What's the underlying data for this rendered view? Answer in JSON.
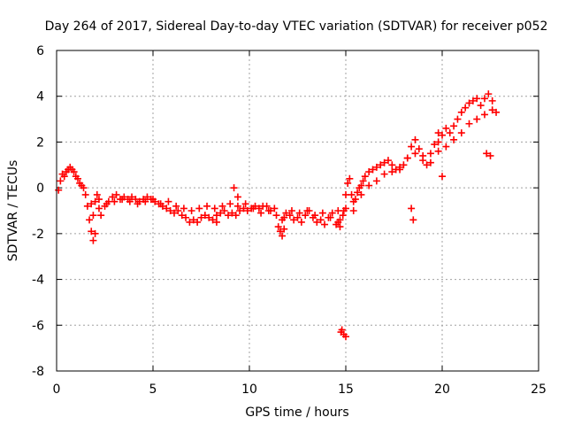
{
  "chart_data": {
    "type": "scatter",
    "title": "Day 264 of 2017, Sidereal Day-to-day VTEC variation (SDTVAR) for receiver p052",
    "xlabel": "GPS time / hours",
    "ylabel": "SDTVAR / TECUs",
    "xlim": [
      0,
      25
    ],
    "ylim": [
      -8,
      6
    ],
    "xticks": [
      0,
      5,
      10,
      15,
      20,
      25
    ],
    "yticks": [
      -8,
      -6,
      -4,
      -2,
      0,
      2,
      4,
      6
    ],
    "grid": true,
    "marker": "+",
    "series": [
      {
        "name": "SDTVAR",
        "color": "#ff0000",
        "x": [
          0.1,
          0.2,
          0.3,
          0.4,
          0.5,
          0.6,
          0.7,
          0.8,
          0.9,
          1.0,
          1.1,
          1.2,
          1.3,
          1.4,
          1.5,
          1.6,
          1.7,
          1.8,
          1.9,
          2.0,
          2.1,
          2.2,
          2.3,
          2.5,
          2.7,
          2.9,
          3.1,
          3.3,
          3.5,
          3.7,
          3.9,
          4.1,
          4.3,
          4.5,
          4.7,
          4.9,
          5.1,
          5.3,
          5.5,
          5.7,
          5.9,
          6.1,
          6.3,
          6.5,
          6.7,
          6.9,
          7.1,
          7.3,
          7.5,
          7.7,
          7.9,
          8.1,
          8.3,
          8.5,
          8.7,
          8.9,
          9.1,
          9.3,
          9.5,
          9.7,
          9.9,
          10.1,
          10.3,
          10.5,
          10.7,
          10.9,
          11.1,
          11.3,
          11.5,
          11.7,
          11.9,
          12.1,
          12.3,
          12.5,
          12.7,
          12.9,
          13.1,
          13.3,
          13.5,
          13.7,
          13.9,
          14.1,
          14.3,
          14.5,
          14.7,
          14.85,
          14.9,
          15.0,
          15.1,
          15.2,
          15.3,
          15.4,
          15.5,
          15.6,
          15.7,
          15.8,
          15.9,
          16.0,
          16.2,
          16.4,
          16.6,
          16.8,
          17.0,
          17.2,
          17.4,
          17.6,
          17.8,
          18.0,
          18.2,
          18.4,
          18.6,
          18.8,
          19.0,
          19.2,
          19.4,
          19.6,
          19.8,
          20.0,
          20.2,
          20.4,
          20.6,
          20.8,
          21.0,
          21.2,
          21.4,
          21.6,
          21.8,
          22.0,
          22.2,
          22.4,
          22.6,
          22.8,
          1.8,
          2.2,
          2.6,
          3.0,
          3.4,
          3.8,
          4.2,
          4.6,
          5.0,
          5.4,
          5.8,
          6.2,
          6.6,
          7.0,
          7.4,
          7.8,
          8.2,
          8.6,
          9.0,
          9.4,
          9.8,
          10.2,
          10.6,
          11.0,
          11.4,
          11.8,
          12.2,
          12.6,
          13.0,
          13.4,
          13.8,
          14.2,
          14.6,
          15.0,
          15.4,
          15.8,
          16.2,
          16.6,
          17.0,
          17.4,
          17.8,
          18.2,
          18.6,
          19.0,
          19.4,
          19.8,
          20.2,
          20.6,
          21.0,
          21.4,
          21.8,
          22.2,
          22.6,
          1.9,
          2.0,
          8.3,
          9.2,
          9.4,
          11.6,
          11.7,
          11.8,
          14.6,
          14.7,
          14.75,
          14.8,
          14.9,
          15.0,
          18.4,
          18.5,
          19.8,
          20.0,
          22.3,
          22.5
        ],
        "y": [
          -0.1,
          0.3,
          0.6,
          0.5,
          0.7,
          0.8,
          0.9,
          0.8,
          0.7,
          0.5,
          0.4,
          0.2,
          0.1,
          0.0,
          -0.3,
          -0.8,
          -1.4,
          -1.9,
          -1.2,
          -0.6,
          -0.3,
          -0.9,
          -1.2,
          -0.8,
          -0.6,
          -0.4,
          -0.3,
          -0.5,
          -0.4,
          -0.5,
          -0.4,
          -0.5,
          -0.6,
          -0.5,
          -0.4,
          -0.5,
          -0.6,
          -0.7,
          -0.8,
          -0.9,
          -1.0,
          -1.1,
          -1.0,
          -1.2,
          -1.3,
          -1.5,
          -1.4,
          -1.5,
          -1.3,
          -1.2,
          -1.3,
          -1.4,
          -1.2,
          -1.1,
          -1.0,
          -1.2,
          -1.1,
          -1.2,
          -1.0,
          -0.9,
          -1.0,
          -0.9,
          -0.8,
          -0.9,
          -0.8,
          -0.8,
          -1.0,
          -0.9,
          -1.7,
          -1.4,
          -1.1,
          -1.2,
          -1.4,
          -1.3,
          -1.5,
          -1.2,
          -1.0,
          -1.3,
          -1.5,
          -1.4,
          -1.6,
          -1.3,
          -1.1,
          -1.6,
          -1.4,
          -1.2,
          -1.0,
          -0.3,
          0.2,
          0.4,
          -0.3,
          -1.0,
          -0.5,
          -0.2,
          0.0,
          0.1,
          0.3,
          0.5,
          0.7,
          0.8,
          0.9,
          1.0,
          1.1,
          1.2,
          1.0,
          0.8,
          0.8,
          1.0,
          1.3,
          1.8,
          2.1,
          1.7,
          1.4,
          1.0,
          1.5,
          1.9,
          2.0,
          2.3,
          2.6,
          2.4,
          2.7,
          3.0,
          3.3,
          3.5,
          3.7,
          3.8,
          3.9,
          3.6,
          3.9,
          4.1,
          3.8,
          3.3,
          -0.7,
          -0.5,
          -0.7,
          -0.6,
          -0.5,
          -0.6,
          -0.7,
          -0.6,
          -0.5,
          -0.7,
          -0.6,
          -0.8,
          -0.9,
          -1.0,
          -0.9,
          -0.8,
          -0.9,
          -0.8,
          -0.7,
          -0.8,
          -0.7,
          -0.9,
          -1.1,
          -1.0,
          -1.2,
          -1.3,
          -1.0,
          -1.1,
          -1.0,
          -1.2,
          -1.1,
          -1.3,
          -1.0,
          -0.9,
          -0.6,
          -0.3,
          0.1,
          0.3,
          0.6,
          0.7,
          0.9,
          1.3,
          1.5,
          1.2,
          1.1,
          1.6,
          1.8,
          2.1,
          2.4,
          2.8,
          3.0,
          3.2,
          3.4,
          -2.3,
          -2.0,
          -1.5,
          0.0,
          -0.4,
          -1.9,
          -2.1,
          -1.8,
          -1.5,
          -1.7,
          -6.3,
          -6.2,
          -6.4,
          -6.5,
          -0.9,
          -1.4,
          2.4,
          0.5,
          1.5,
          1.4
        ]
      }
    ]
  }
}
